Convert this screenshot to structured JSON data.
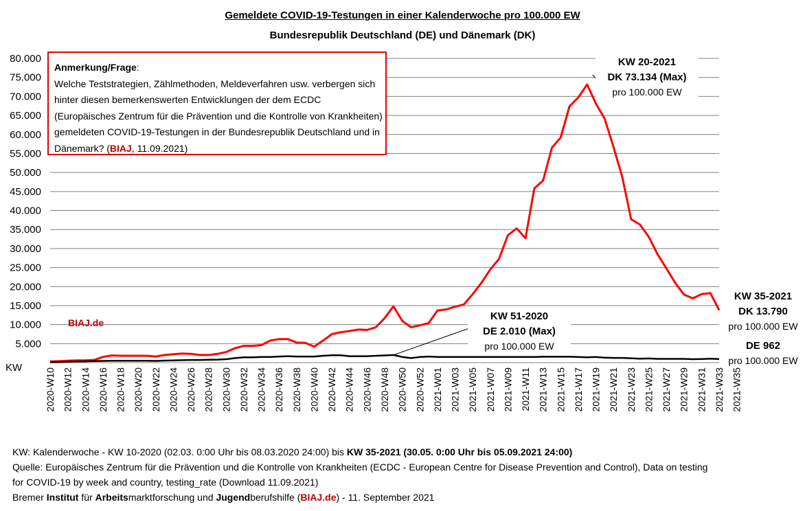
{
  "title": "Gemeldete COVID-19-Testungen in einer Kalenderwoche pro 100.000 EW",
  "subtitle": "Bundesrepublik Deutschland (DE) und Dänemark (DK)",
  "note": {
    "heading": "Anmerkung/Frage",
    "text": "Welche Teststrategien, Zählmethoden, Meldeverfahren usw. verbergen sich hinter diesen bemerkenswerten Entwicklungen der dem ECDC (Europäisches Zentrum für die Prävention und die Kontrolle von Krankheiten) gemeldeten COVID-19-Testungen in der Bundesrepublik Deutschland und in Dänemark? (",
    "brand": "BIAJ",
    "date": ", 11.09.2021)"
  },
  "watermark": "BIAJ.de",
  "annotations": {
    "dk_max": {
      "line1": "KW 20-2021",
      "line2": "DK 73.134 (Max)",
      "line3": "pro 100.000 EW"
    },
    "de_max": {
      "line1": "KW 51-2020",
      "line2": "DE 2.010 (Max)",
      "line3": "pro 100.000 EW"
    },
    "dk_last": {
      "line1": "KW 35-2021",
      "line2": "DK 13.790",
      "line3": "pro 100.000 EW"
    },
    "de_last": {
      "line1": "DE 962",
      "line2": "pro 100.000 EW"
    }
  },
  "footer": {
    "line1_a": "KW: Kalenderwoche - KW 10-2020 (02.03. 0:00 Uhr bis 08.03.2020 24:00) bis ",
    "line1_b": "KW 35-2021 (30.05. 0:00 Uhr bis 05.09.2021 24:00)",
    "line2": "Quelle: Europäisches Zentrum für die Prävention und die Kontrolle von Krankheiten (ECDC - European Centre for Disease Prevention and Control), Data on testing",
    "line3": "for COVID-19 by week and country, testing_rate (Download 11.09.2021)",
    "line4_parts": [
      "Bremer ",
      "Institut",
      " für ",
      "Arbeits",
      "marktforschung und ",
      "Jugend",
      "berufshilfe (",
      "BIAJ.de",
      ") - 11. September 2021"
    ]
  },
  "chart_data": {
    "type": "line",
    "ylabel": "KW",
    "ylim": [
      0,
      80000
    ],
    "yticks": [
      "5.000",
      "10.000",
      "15.000",
      "20.000",
      "25.000",
      "30.000",
      "35.000",
      "40.000",
      "45.000",
      "50.000",
      "55.000",
      "60.000",
      "65.000",
      "70.000",
      "75.000",
      "80.000"
    ],
    "xtick_labels": [
      "2020-W10",
      "2020-W12",
      "2020-W14",
      "2020-W16",
      "2020-W18",
      "2020-W20",
      "2020-W22",
      "2020-W24",
      "2020-W26",
      "2020-W28",
      "2020-W30",
      "2020-W32",
      "2020-W34",
      "2020-W36",
      "2020-W38",
      "2020-W40",
      "2020-W42",
      "2020-W44",
      "2020-W46",
      "2020-W48",
      "2020-W50",
      "2020-W52",
      "2021-W01",
      "2021-W03",
      "2021-W05",
      "2021-W07",
      "2021-W09",
      "2021-W11",
      "2021-W13",
      "2021-W15",
      "2021-W17",
      "2021-W19",
      "2021-W21",
      "2021-W23",
      "2021-W25",
      "2021-W27",
      "2021-W29",
      "2021-W31",
      "2021-W33",
      "2021-W35"
    ],
    "grid": true,
    "series": [
      {
        "name": "DK",
        "color": "#ff0000",
        "values": [
          300,
          400,
          500,
          600,
          600,
          700,
          1500,
          1900,
          1800,
          1800,
          1800,
          1800,
          1600,
          2000,
          2200,
          2400,
          2300,
          2000,
          2000,
          2300,
          2800,
          3800,
          4400,
          4400,
          4600,
          5800,
          6200,
          6200,
          5300,
          5200,
          4200,
          5800,
          7500,
          8000,
          8300,
          8700,
          8600,
          9300,
          11700,
          14800,
          11000,
          9300,
          9800,
          10400,
          13700,
          14000,
          14700,
          15300,
          18000,
          21000,
          24500,
          27300,
          33500,
          35300,
          32700,
          45800,
          47900,
          56500,
          59200,
          67400,
          69700,
          73134,
          68100,
          64100,
          56700,
          48800,
          37700,
          36300,
          33100,
          28500,
          24800,
          21000,
          17900,
          16900,
          18000,
          18300,
          13790
        ]
      },
      {
        "name": "DE",
        "color": "#000000",
        "values": [
          100,
          150,
          250,
          300,
          350,
          400,
          450,
          500,
          500,
          500,
          500,
          500,
          450,
          550,
          600,
          650,
          700,
          700,
          750,
          800,
          900,
          1200,
          1400,
          1400,
          1500,
          1500,
          1600,
          1700,
          1600,
          1600,
          1600,
          1800,
          1950,
          1950,
          1700,
          1700,
          1700,
          1800,
          1900,
          2010,
          1500,
          1200,
          1500,
          1600,
          1500,
          1500,
          1500,
          1500,
          1500,
          1500,
          1500,
          1500,
          1500,
          1500,
          1500,
          1500,
          1550,
          1550,
          1550,
          1550,
          1500,
          1400,
          1500,
          1300,
          1250,
          1250,
          1150,
          1050,
          1100,
          1000,
          1000,
          1000,
          1000,
          900,
          950,
          1050,
          962
        ]
      }
    ]
  }
}
